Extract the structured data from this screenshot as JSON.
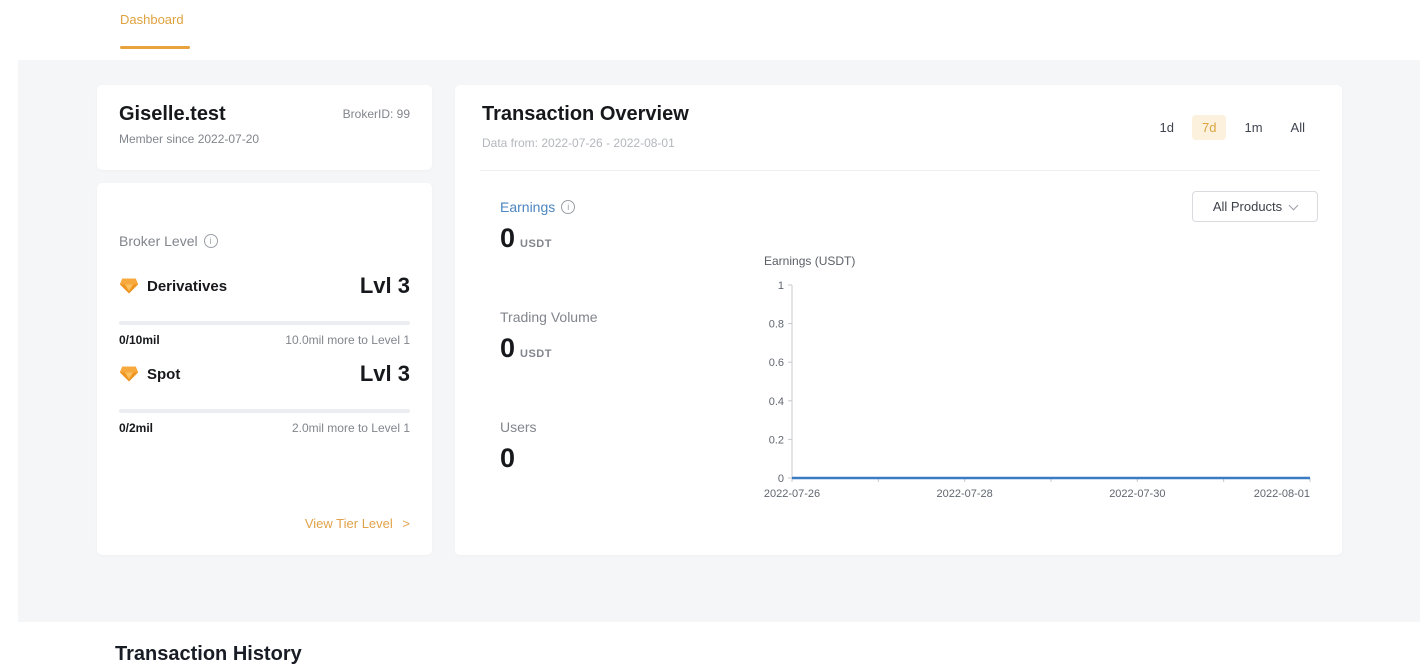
{
  "topbar": {
    "dashboard_tab": "Dashboard"
  },
  "profile": {
    "name": "Giselle.test",
    "broker_id": "BrokerID: 99",
    "member_since": "Member since 2022-07-20"
  },
  "broker_level": {
    "title": "Broker Level",
    "items": [
      {
        "name": "Derivatives",
        "level": "Lvl 3",
        "progress": "0/10mil",
        "remaining": "10.0mil more to Level 1",
        "progress_pct": 0
      },
      {
        "name": "Spot",
        "level": "Lvl 3",
        "progress": "0/2mil",
        "remaining": "2.0mil more to Level 1",
        "progress_pct": 0
      }
    ],
    "view_tier_link": "View Tier Level",
    "view_tier_arrow": ">"
  },
  "overview": {
    "title": "Transaction Overview",
    "subtitle": "Data from: 2022-07-26 - 2022-08-01",
    "ranges": [
      {
        "label": "1d",
        "active": false
      },
      {
        "label": "7d",
        "active": true
      },
      {
        "label": "1m",
        "active": false
      },
      {
        "label": "All",
        "active": false
      }
    ],
    "products_filter": "All Products",
    "metrics": [
      {
        "label": "Earnings",
        "value": "0",
        "unit": "USDT",
        "selected": true
      },
      {
        "label": "Trading Volume",
        "value": "0",
        "unit": "USDT",
        "selected": false
      },
      {
        "label": "Users",
        "value": "0",
        "unit": "",
        "selected": false
      }
    ]
  },
  "chart_data": {
    "type": "line",
    "title": "Earnings (USDT)",
    "x_ticks": [
      "2022-07-26",
      "",
      "2022-07-28",
      "",
      "2022-07-30",
      "",
      "2022-08-01"
    ],
    "y_ticks": [
      0,
      0.2,
      0.4,
      0.6,
      0.8,
      1
    ],
    "ylim": [
      0,
      1
    ],
    "series": [
      {
        "name": "Earnings",
        "values": [
          0,
          0,
          0,
          0,
          0,
          0,
          0
        ]
      }
    ],
    "line_color": "#3a7cc4",
    "grid": false,
    "legend": "none"
  },
  "icons": {
    "info": "i"
  },
  "history": {
    "title": "Transaction History"
  },
  "colors": {
    "accent_orange": "#e8a33d",
    "active_range_bg": "#fbf1dd",
    "link_blue": "#4c86c0",
    "chart_line": "#3a7cc4"
  }
}
